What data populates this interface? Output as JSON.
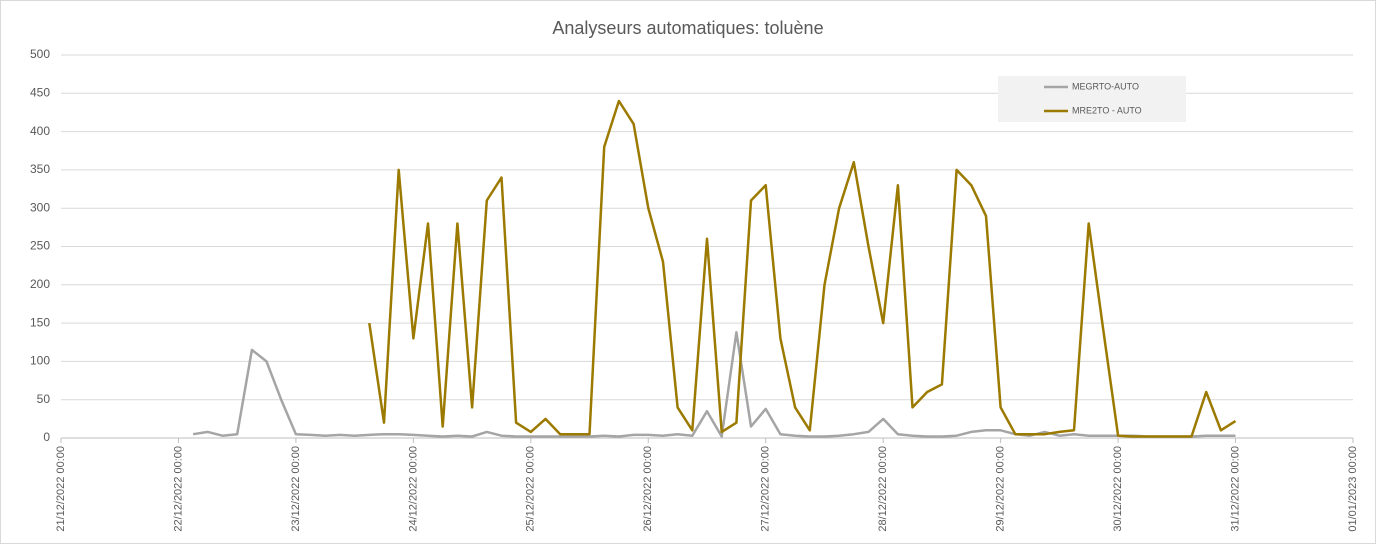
{
  "chart_data": {
    "type": "line",
    "title": "Analyseurs automatiques: toluène",
    "x": [
      "22/12/2022 00:00",
      "22/12/2022 03:00",
      "22/12/2022 06:00",
      "22/12/2022 09:00",
      "22/12/2022 12:00",
      "22/12/2022 15:00",
      "22/12/2022 18:00",
      "22/12/2022 21:00",
      "23/12/2022 00:00",
      "23/12/2022 03:00",
      "23/12/2022 06:00",
      "23/12/2022 09:00",
      "23/12/2022 12:00",
      "23/12/2022 15:00",
      "23/12/2022 18:00",
      "23/12/2022 21:00",
      "24/12/2022 00:00",
      "24/12/2022 03:00",
      "24/12/2022 06:00",
      "24/12/2022 09:00",
      "24/12/2022 12:00",
      "24/12/2022 15:00",
      "24/12/2022 18:00",
      "24/12/2022 21:00",
      "25/12/2022 00:00",
      "25/12/2022 03:00",
      "25/12/2022 06:00",
      "25/12/2022 09:00",
      "25/12/2022 12:00",
      "25/12/2022 15:00",
      "25/12/2022 18:00",
      "25/12/2022 21:00",
      "26/12/2022 00:00",
      "26/12/2022 03:00",
      "26/12/2022 06:00",
      "26/12/2022 09:00",
      "26/12/2022 12:00",
      "26/12/2022 15:00",
      "26/12/2022 18:00",
      "26/12/2022 21:00",
      "27/12/2022 00:00",
      "27/12/2022 03:00",
      "27/12/2022 06:00",
      "27/12/2022 09:00",
      "27/12/2022 12:00",
      "27/12/2022 15:00",
      "27/12/2022 18:00",
      "27/12/2022 21:00",
      "28/12/2022 00:00",
      "28/12/2022 03:00",
      "28/12/2022 06:00",
      "28/12/2022 09:00",
      "28/12/2022 12:00",
      "28/12/2022 15:00",
      "28/12/2022 18:00",
      "28/12/2022 21:00",
      "29/12/2022 00:00",
      "29/12/2022 03:00",
      "29/12/2022 06:00",
      "29/12/2022 09:00",
      "29/12/2022 12:00",
      "29/12/2022 15:00",
      "29/12/2022 18:00",
      "29/12/2022 21:00",
      "30/12/2022 00:00",
      "30/12/2022 03:00",
      "30/12/2022 06:00",
      "30/12/2022 09:00",
      "30/12/2022 12:00",
      "30/12/2022 15:00",
      "30/12/2022 18:00",
      "30/12/2022 21:00",
      "31/12/2022 00:00"
    ],
    "series": [
      {
        "name": "MEGRTO-AUTO",
        "color": "#a5a5a5",
        "values": [
          null,
          5,
          8,
          3,
          5,
          115,
          100,
          50,
          5,
          4,
          3,
          4,
          3,
          4,
          5,
          5,
          4,
          3,
          2,
          3,
          2,
          8,
          3,
          2,
          2,
          2,
          2,
          2,
          2,
          3,
          2,
          4,
          4,
          3,
          5,
          3,
          35,
          2,
          138,
          15,
          38,
          5,
          3,
          2,
          2,
          3,
          5,
          8,
          25,
          5,
          3,
          2,
          2,
          3,
          8,
          10,
          10,
          5,
          3,
          8,
          3,
          5,
          3,
          3,
          3,
          3,
          2,
          2,
          2,
          2,
          3,
          3,
          3
        ]
      },
      {
        "name": "MRE2TO - AUTO",
        "color": "#9c7a00",
        "values": [
          null,
          null,
          null,
          null,
          null,
          null,
          null,
          null,
          null,
          null,
          null,
          null,
          null,
          150,
          20,
          350,
          130,
          280,
          15,
          280,
          40,
          310,
          340,
          20,
          8,
          25,
          5,
          5,
          5,
          380,
          440,
          410,
          300,
          230,
          40,
          10,
          260,
          8,
          20,
          310,
          330,
          130,
          40,
          10,
          200,
          300,
          360,
          250,
          150,
          330,
          40,
          60,
          70,
          350,
          330,
          290,
          40,
          5,
          5,
          5,
          8,
          10,
          280,
          140,
          3,
          2,
          2,
          2,
          2,
          2,
          60,
          10,
          22
        ]
      }
    ],
    "xlim": [
      "21/12/2022 00:00",
      "01/01/2023 00:00"
    ],
    "xticks": [
      "21/12/2022 00:00",
      "22/12/2022 00:00",
      "23/12/2022 00:00",
      "24/12/2022 00:00",
      "25/12/2022 00:00",
      "26/12/2022 00:00",
      "27/12/2022 00:00",
      "28/12/2022 00:00",
      "29/12/2022 00:00",
      "30/12/2022 00:00",
      "31/12/2022 00:00",
      "01/01/2023 00:00"
    ],
    "ylim": [
      0,
      500
    ],
    "yticks": [
      0,
      50,
      100,
      150,
      200,
      250,
      300,
      350,
      400,
      450,
      500
    ],
    "grid": true,
    "legend": "top-right"
  }
}
